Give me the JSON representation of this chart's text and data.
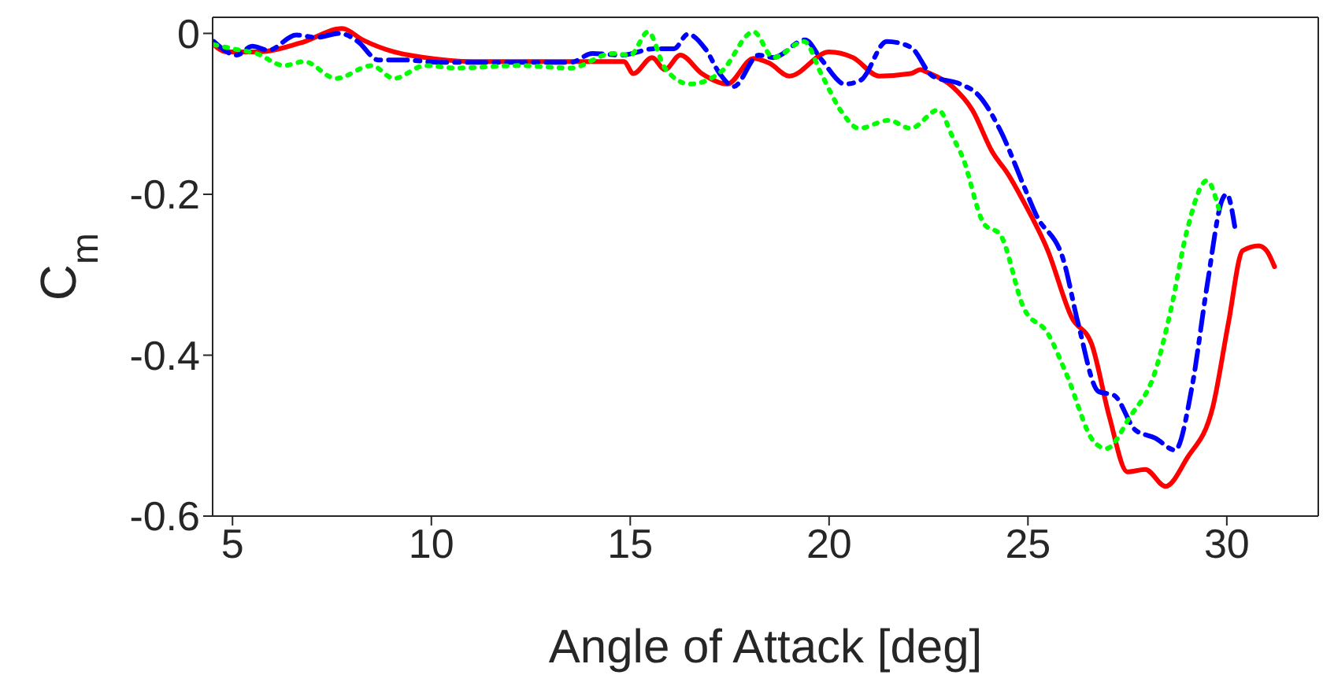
{
  "chart_data": {
    "type": "line",
    "xlabel": "Angle of Attack [deg]",
    "ylabel": "C$_{m}$",
    "xlim": [
      4.5,
      32.3
    ],
    "xticks": [
      5,
      10,
      15,
      20,
      25,
      30
    ],
    "ylim": [
      -0.6,
      0.02
    ],
    "yticks": [
      0,
      -0.2,
      -0.4,
      -0.6
    ],
    "marker": "none",
    "series": [
      {
        "color": "#ff0000",
        "line_style": "solid",
        "x": [
          4.53,
          4.84,
          5.63,
          6.7,
          7.76,
          8.27,
          9.06,
          9.84,
          11,
          12.5,
          14,
          14.84,
          15.08,
          15.55,
          15.87,
          16.26,
          16.8,
          17.44,
          18.1,
          18.5,
          19.0,
          20.0,
          20.6,
          21.26,
          22.05,
          22.3,
          22.45,
          23.1,
          23.6,
          24.1,
          24.5,
          24.9,
          25.5,
          26.1,
          26.6,
          27.05,
          27.5,
          27.95,
          28.46,
          29.0,
          29.65,
          30.04,
          30.4,
          30.8,
          31.0,
          31.2
        ],
        "values": [
          -0.014,
          -0.023,
          -0.023,
          -0.012,
          0.006,
          -0.008,
          -0.023,
          -0.03,
          -0.035,
          -0.035,
          -0.035,
          -0.035,
          -0.05,
          -0.03,
          -0.045,
          -0.027,
          -0.05,
          -0.063,
          -0.031,
          -0.037,
          -0.053,
          -0.023,
          -0.03,
          -0.053,
          -0.05,
          -0.045,
          -0.048,
          -0.066,
          -0.095,
          -0.147,
          -0.175,
          -0.21,
          -0.27,
          -0.353,
          -0.386,
          -0.477,
          -0.545,
          -0.542,
          -0.563,
          -0.528,
          -0.464,
          -0.36,
          -0.27,
          -0.264,
          -0.27,
          -0.29
        ]
      },
      {
        "color": "#0000ff",
        "line_style": "dashed",
        "x": [
          4.53,
          5.1,
          5.5,
          5.9,
          6.6,
          7.1,
          7.7,
          8.15,
          8.66,
          9.3,
          10.2,
          12.2,
          13.5,
          14.05,
          14.8,
          15.6,
          16.1,
          16.45,
          16.9,
          17.25,
          17.6,
          18.23,
          18.6,
          19.4,
          19.8,
          20.4,
          20.8,
          21.45,
          22.05,
          22.6,
          23.3,
          23.74,
          24.3,
          24.9,
          25.2,
          25.9,
          26.26,
          26.77,
          27.17,
          27.7,
          28.2,
          28.7,
          29.13,
          29.5,
          29.9,
          30.0,
          30.2
        ],
        "values": [
          -0.01,
          -0.027,
          -0.016,
          -0.021,
          -0.002,
          -0.005,
          0,
          -0.01,
          -0.033,
          -0.033,
          -0.036,
          -0.036,
          -0.036,
          -0.025,
          -0.027,
          -0.019,
          -0.019,
          -0.001,
          -0.02,
          -0.05,
          -0.066,
          -0.027,
          -0.03,
          -0.008,
          -0.032,
          -0.063,
          -0.058,
          -0.01,
          -0.017,
          -0.053,
          -0.063,
          -0.076,
          -0.12,
          -0.19,
          -0.225,
          -0.283,
          -0.36,
          -0.445,
          -0.45,
          -0.493,
          -0.503,
          -0.518,
          -0.438,
          -0.315,
          -0.205,
          -0.2,
          -0.24
        ]
      },
      {
        "color": "#00ff00",
        "line_style": "dotted",
        "x": [
          4.53,
          5.1,
          5.6,
          6.3,
          6.8,
          7.6,
          8.5,
          9.06,
          9.84,
          10.6,
          12.2,
          13.5,
          14.55,
          15.0,
          15.45,
          15.87,
          16.5,
          17.3,
          18.1,
          18.6,
          19.37,
          19.8,
          20.35,
          20.75,
          21.5,
          22.05,
          22.75,
          23.1,
          23.35,
          23.9,
          24.3,
          24.9,
          25.5,
          25.98,
          26.65,
          26.97,
          27.56,
          28.2,
          28.6,
          29.0,
          29.5,
          29.8
        ],
        "values": [
          -0.014,
          -0.02,
          -0.025,
          -0.04,
          -0.035,
          -0.056,
          -0.04,
          -0.056,
          -0.04,
          -0.043,
          -0.04,
          -0.043,
          -0.025,
          -0.027,
          0.002,
          -0.043,
          -0.063,
          -0.047,
          0.002,
          -0.03,
          -0.01,
          -0.05,
          -0.1,
          -0.118,
          -0.108,
          -0.118,
          -0.095,
          -0.128,
          -0.153,
          -0.237,
          -0.25,
          -0.342,
          -0.373,
          -0.425,
          -0.507,
          -0.516,
          -0.477,
          -0.42,
          -0.342,
          -0.245,
          -0.183,
          -0.218
        ]
      }
    ]
  }
}
